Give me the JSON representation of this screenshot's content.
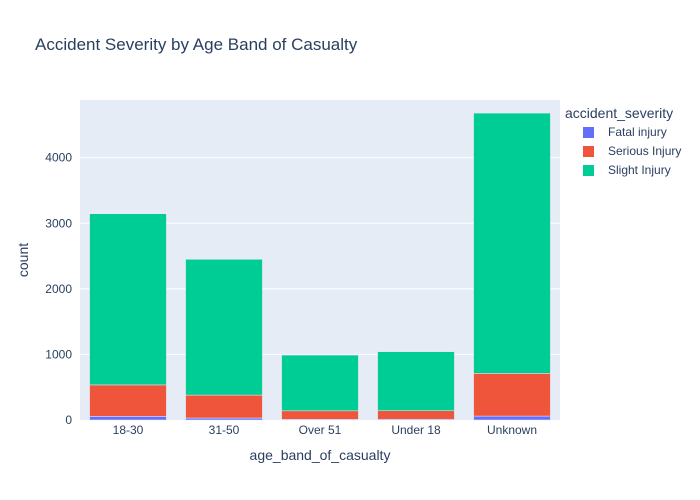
{
  "chart_data": {
    "type": "bar",
    "barmode": "stack",
    "title": "Accident Severity by Age Band of Casualty",
    "xlabel": "age_band_of_casualty",
    "ylabel": "count",
    "categories": [
      "18-30",
      "31-50",
      "Over 51",
      "Under 18",
      "Unknown"
    ],
    "series": [
      {
        "name": "Fatal injury",
        "color": "#636efa",
        "values": [
          55,
          30,
          10,
          12,
          60
        ]
      },
      {
        "name": "Serious Injury",
        "color": "#ef553b",
        "values": [
          480,
          350,
          130,
          130,
          650
        ]
      },
      {
        "name": "Slight Injury",
        "color": "#00cc96",
        "values": [
          2610,
          2070,
          850,
          900,
          3970
        ]
      }
    ],
    "ylim": [
      0,
      4880
    ],
    "yticks": [
      0,
      1000,
      2000,
      3000,
      4000
    ],
    "grid": true,
    "legend": {
      "title": "accident_severity",
      "position": "right"
    },
    "plot_background": "#e5ecf6"
  }
}
